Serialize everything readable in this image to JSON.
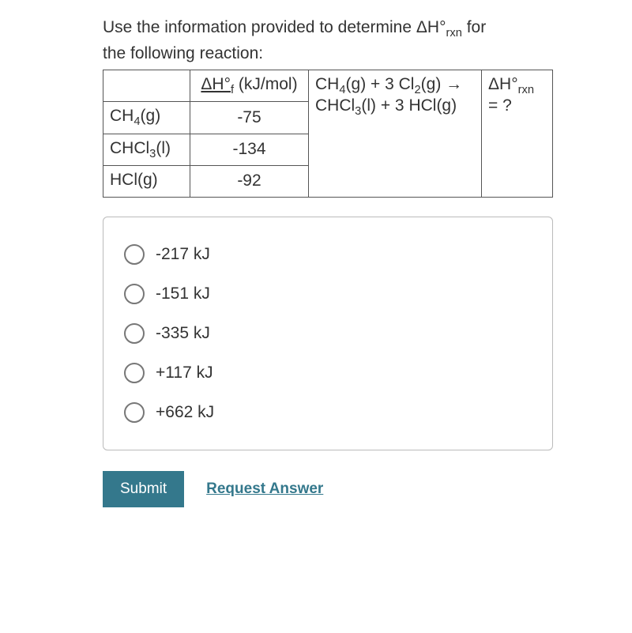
{
  "question": {
    "line1": "Use the information provided to determine ΔH°",
    "sub1": "rxn",
    "line1_after": " for",
    "line2": "the following reaction:"
  },
  "table": {
    "header": {
      "dhf_label": "ΔH°",
      "dhf_sub": "f",
      "dhf_unit": " (kJ/mol)",
      "reaction_l1_a": "CH",
      "reaction_l1_a_sub": "4",
      "reaction_l1_b": "(g) + 3 Cl",
      "reaction_l1_b_sub": "2",
      "reaction_l1_c": "(g) →",
      "reaction_l2_a": "CHCl",
      "reaction_l2_a_sub": "3",
      "reaction_l2_b": "(l) + 3 HCl(g)",
      "answer_l1_a": "ΔH°",
      "answer_l1_sub": "rxn",
      "answer_l2": "= ?"
    },
    "rows": [
      {
        "species_a": "CH",
        "species_sub": "4",
        "species_b": "(g)",
        "value": "-75"
      },
      {
        "species_a": "CHCl",
        "species_sub": "3",
        "species_b": "(l)",
        "value": "-134"
      },
      {
        "species_a": "HCl(g)",
        "species_sub": "",
        "species_b": "",
        "value": "-92"
      }
    ]
  },
  "options": [
    {
      "label": "-217 kJ"
    },
    {
      "label": "-151 kJ"
    },
    {
      "label": "-335 kJ"
    },
    {
      "label": "+117 kJ"
    },
    {
      "label": "+662 kJ"
    }
  ],
  "actions": {
    "submit": "Submit",
    "request": "Request Answer"
  },
  "colors": {
    "submit_bg": "#34788c",
    "link_color": "#34788c",
    "border": "#555555",
    "text": "#333333"
  }
}
